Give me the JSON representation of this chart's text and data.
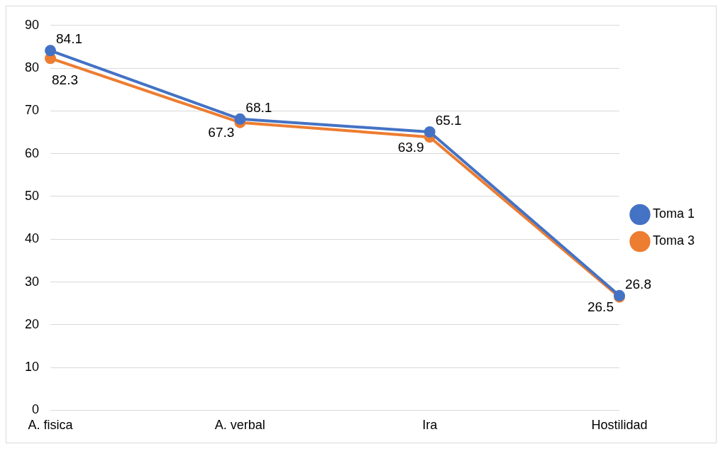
{
  "chart_data": {
    "type": "line",
    "categories": [
      "A. fisica",
      "A. verbal",
      "Ira",
      "Hostilidad"
    ],
    "series": [
      {
        "name": "Toma 1",
        "color": "#4472c4",
        "values": [
          84.1,
          68.1,
          65.1,
          26.8
        ]
      },
      {
        "name": "Toma 3",
        "color": "#ed7d31",
        "values": [
          82.3,
          67.3,
          63.9,
          26.5
        ]
      }
    ],
    "ylim": [
      0,
      90
    ],
    "yticks": [
      0,
      10,
      20,
      30,
      40,
      50,
      60,
      70,
      80,
      90
    ],
    "grid": "y",
    "legend": "right",
    "marker": "circle",
    "line_style": "solid",
    "data_labels": true
  }
}
